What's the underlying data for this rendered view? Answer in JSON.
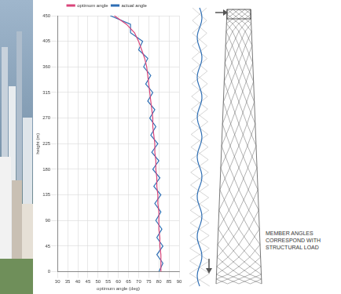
{
  "chart_data": {
    "type": "line",
    "x_label": "optimum angle (deg)",
    "y_label": "height (m)",
    "xlim": [
      30,
      90
    ],
    "xticks": [
      30,
      35,
      40,
      45,
      50,
      55,
      60,
      65,
      70,
      75,
      80,
      85,
      90
    ],
    "ylim": [
      0,
      450
    ],
    "yticks": [
      0,
      45,
      90,
      135,
      180,
      225,
      270,
      315,
      360,
      405,
      450
    ],
    "grid": true,
    "legend": "top",
    "series": [
      {
        "name": "optimum angle",
        "color": "#d9457a",
        "x": [
          81,
          81,
          81,
          80.5,
          80.5,
          80,
          80,
          80,
          79.5,
          79.5,
          79,
          79,
          78.5,
          78.5,
          78,
          78,
          77.5,
          77,
          77,
          76.5,
          76,
          75.5,
          75,
          74.5,
          74,
          73,
          71.5,
          70,
          68,
          64,
          58
        ],
        "y": [
          0,
          15,
          30,
          45,
          60,
          75,
          90,
          105,
          120,
          135,
          150,
          165,
          180,
          195,
          210,
          225,
          240,
          255,
          270,
          285,
          300,
          315,
          330,
          345,
          360,
          375,
          390,
          405,
          420,
          435,
          450
        ]
      },
      {
        "name": "actual angle",
        "color": "#2f6fb5",
        "x": [
          80,
          82,
          79,
          82,
          79,
          81.5,
          78.5,
          81,
          78,
          81,
          77.5,
          80.5,
          77,
          80,
          76.5,
          79.5,
          76,
          78.5,
          75.5,
          78,
          74.5,
          77,
          73.5,
          76,
          72.5,
          74.5,
          70,
          72,
          66,
          66,
          56
        ],
        "y": [
          0,
          15,
          30,
          45,
          60,
          75,
          90,
          105,
          120,
          135,
          150,
          165,
          180,
          195,
          210,
          225,
          240,
          255,
          270,
          285,
          300,
          315,
          330,
          345,
          360,
          375,
          390,
          405,
          420,
          435,
          450
        ]
      }
    ]
  },
  "diagram": {
    "label": [
      "MEMBER ANGLES",
      "CORRESPOND WITH",
      "STRUCTURAL LOAD"
    ]
  }
}
